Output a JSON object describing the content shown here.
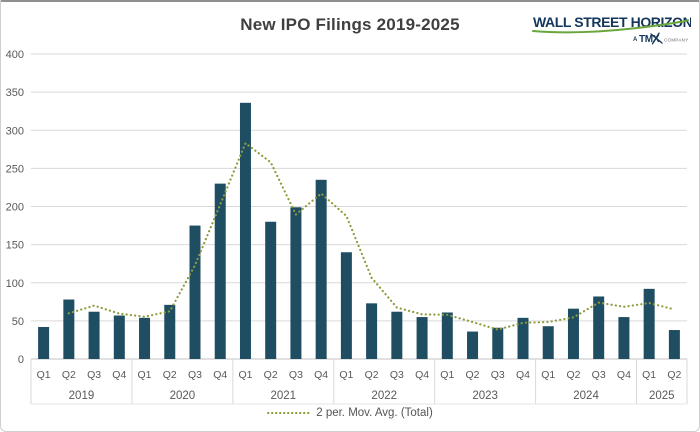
{
  "header": {
    "title": "New IPO Filings 2019-2025",
    "logo": {
      "brand": "WALL STREET HORIZON",
      "sub_prefix": "A",
      "sub_brand": "TMX",
      "sub_suffix": "COMPANY",
      "brand_color": "#14365c",
      "swoosh_color": "#6aa63b"
    }
  },
  "chart_data": {
    "type": "bar",
    "title": "New IPO Filings 2019-2025",
    "xlabel": "",
    "ylabel": "",
    "ylim": [
      0,
      400
    ],
    "y_ticks": [
      0,
      50,
      100,
      150,
      200,
      250,
      300,
      350,
      400
    ],
    "grid": true,
    "legend": "2 per. Mov. Avg. (Total)",
    "legend_position": "bottom",
    "groups": [
      {
        "year": "2019",
        "quarters": [
          "Q1",
          "Q2",
          "Q3",
          "Q4"
        ],
        "values": [
          42,
          78,
          62,
          57
        ]
      },
      {
        "year": "2020",
        "quarters": [
          "Q1",
          "Q2",
          "Q3",
          "Q4"
        ],
        "values": [
          54,
          71,
          175,
          230
        ]
      },
      {
        "year": "2021",
        "quarters": [
          "Q1",
          "Q2",
          "Q3",
          "Q4"
        ],
        "values": [
          336,
          180,
          199,
          235
        ]
      },
      {
        "year": "2022",
        "quarters": [
          "Q1",
          "Q2",
          "Q3",
          "Q4"
        ],
        "values": [
          140,
          73,
          62,
          55
        ]
      },
      {
        "year": "2023",
        "quarters": [
          "Q1",
          "Q2",
          "Q3",
          "Q4"
        ],
        "values": [
          61,
          36,
          41,
          54
        ]
      },
      {
        "year": "2024",
        "quarters": [
          "Q1",
          "Q2",
          "Q3",
          "Q4"
        ],
        "values": [
          43,
          66,
          82,
          55
        ]
      },
      {
        "year": "2025",
        "quarters": [
          "Q1",
          "Q2"
        ],
        "values": [
          92,
          38
        ]
      }
    ],
    "overlay_series": {
      "name": "2 per. Mov. Avg. (Total)",
      "derivation": "2-period trailing moving average of bar values",
      "style": "dotted"
    },
    "colors": {
      "bar": "#1f4e63",
      "moving_average": "#8f9c3c",
      "gridline": "#d9d9d9",
      "axis_line": "#c3c3c3",
      "axis_text": "#595959",
      "title_text": "#3f3f3f"
    }
  }
}
